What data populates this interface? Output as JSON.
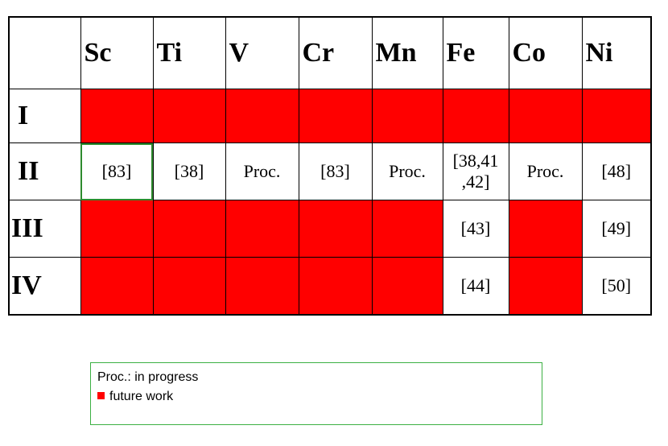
{
  "columns": [
    "Sc",
    "Ti",
    "V",
    "Cr",
    "Mn",
    "Fe",
    "Co",
    "Ni"
  ],
  "rows": [
    {
      "label": "I",
      "cells": [
        {
          "text": "",
          "red": true
        },
        {
          "text": "",
          "red": true
        },
        {
          "text": "",
          "red": true
        },
        {
          "text": "",
          "red": true
        },
        {
          "text": "",
          "red": true
        },
        {
          "text": "",
          "red": true
        },
        {
          "text": "",
          "red": true
        },
        {
          "text": "",
          "red": true
        }
      ]
    },
    {
      "label": "II",
      "cells": [
        {
          "text": "[83]",
          "red": false
        },
        {
          "text": "[38]",
          "red": false
        },
        {
          "text": "Proc.",
          "red": false
        },
        {
          "text": "[83]",
          "red": false
        },
        {
          "text": "Proc.",
          "red": false
        },
        {
          "text": "[38,41\n,42]",
          "red": false
        },
        {
          "text": "Proc.",
          "red": false
        },
        {
          "text": "[48]",
          "red": false
        }
      ]
    },
    {
      "label": "III",
      "cells": [
        {
          "text": "",
          "red": true
        },
        {
          "text": "",
          "red": true
        },
        {
          "text": "",
          "red": true
        },
        {
          "text": "",
          "red": true
        },
        {
          "text": "",
          "red": true
        },
        {
          "text": "[43]",
          "red": false
        },
        {
          "text": "",
          "red": true
        },
        {
          "text": "[49]",
          "red": false
        }
      ]
    },
    {
      "label": "IV",
      "cells": [
        {
          "text": "",
          "red": true
        },
        {
          "text": "",
          "red": true
        },
        {
          "text": "",
          "red": true
        },
        {
          "text": "",
          "red": true
        },
        {
          "text": "",
          "red": true
        },
        {
          "text": "[44]",
          "red": false
        },
        {
          "text": "",
          "red": true
        },
        {
          "text": "[50]",
          "red": false
        }
      ]
    }
  ],
  "legend": {
    "line1": "Proc.: in progress",
    "line2": "future work"
  },
  "colors": {
    "future_work": "#ff0000",
    "highlight_border": "#2e8b2e",
    "legend_border": "#3cb043"
  }
}
